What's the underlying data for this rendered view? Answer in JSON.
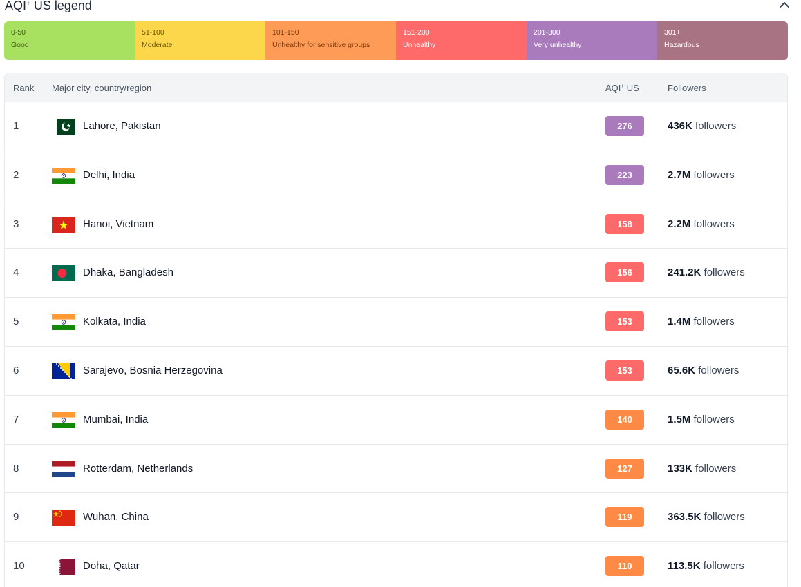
{
  "legend": {
    "title": "AQI",
    "title_sup": "+",
    "title_suffix": " US legend",
    "collapse_icon": "chevron-up-icon",
    "levels": [
      {
        "range": "0-50",
        "label": "Good",
        "color": "#a8e05f",
        "text_color": "#3c5a10"
      },
      {
        "range": "51-100",
        "label": "Moderate",
        "color": "#fdd74b",
        "text_color": "#6b5504"
      },
      {
        "range": "101-150",
        "label": "Unhealthy for sensitive groups",
        "color": "#fe9b57",
        "text_color": "#7a3a0a"
      },
      {
        "range": "151-200",
        "label": "Unhealthy",
        "color": "#fe6a69",
        "text_color": "#ffffff"
      },
      {
        "range": "201-300",
        "label": "Very unhealthy",
        "color": "#a97abc",
        "text_color": "#ffffff"
      },
      {
        "range": "301+",
        "label": "Hazardous",
        "color": "#a87383",
        "text_color": "#ffffff"
      }
    ]
  },
  "table": {
    "headers": {
      "rank": "Rank",
      "city": "Major city, country/region",
      "aqi": "AQI",
      "aqi_sup": "+",
      "aqi_suffix": " US",
      "followers": "Followers"
    },
    "followers_word": " followers",
    "rows": [
      {
        "rank": "1",
        "city": "Lahore, Pakistan",
        "flag": "pakistan-flag-icon",
        "aqi": "276",
        "aqi_color": "#a97abc",
        "followers": "436K"
      },
      {
        "rank": "2",
        "city": "Delhi, India",
        "flag": "india-flag-icon",
        "aqi": "223",
        "aqi_color": "#a97abc",
        "followers": "2.7M"
      },
      {
        "rank": "3",
        "city": "Hanoi, Vietnam",
        "flag": "vietnam-flag-icon",
        "aqi": "158",
        "aqi_color": "#fe6a69",
        "followers": "2.2M"
      },
      {
        "rank": "4",
        "city": "Dhaka, Bangladesh",
        "flag": "bangladesh-flag-icon",
        "aqi": "156",
        "aqi_color": "#fe6a69",
        "followers": "241.2K"
      },
      {
        "rank": "5",
        "city": "Kolkata, India",
        "flag": "india-flag-icon",
        "aqi": "153",
        "aqi_color": "#fe6a69",
        "followers": "1.4M"
      },
      {
        "rank": "6",
        "city": "Sarajevo, Bosnia Herzegovina",
        "flag": "bosnia-flag-icon",
        "aqi": "153",
        "aqi_color": "#fe6a69",
        "followers": "65.6K"
      },
      {
        "rank": "7",
        "city": "Mumbai, India",
        "flag": "india-flag-icon",
        "aqi": "140",
        "aqi_color": "#fe8a45",
        "followers": "1.5M"
      },
      {
        "rank": "8",
        "city": "Rotterdam, Netherlands",
        "flag": "netherlands-flag-icon",
        "aqi": "127",
        "aqi_color": "#fe8a45",
        "followers": "133K"
      },
      {
        "rank": "9",
        "city": "Wuhan, China",
        "flag": "china-flag-icon",
        "aqi": "119",
        "aqi_color": "#fe8a45",
        "followers": "363.5K"
      },
      {
        "rank": "10",
        "city": "Doha, Qatar",
        "flag": "qatar-flag-icon",
        "aqi": "110",
        "aqi_color": "#fe8a45",
        "followers": "113.5K"
      }
    ]
  }
}
